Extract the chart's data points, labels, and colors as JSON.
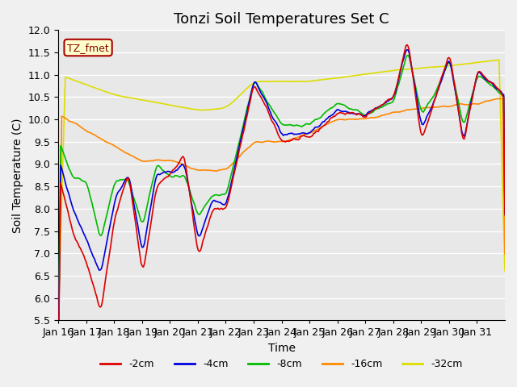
{
  "title": "Tonzi Soil Temperatures Set C",
  "xlabel": "Time",
  "ylabel": "Soil Temperature (C)",
  "ylim": [
    5.5,
    12.0
  ],
  "yticks": [
    5.5,
    6.0,
    6.5,
    7.0,
    7.5,
    8.0,
    8.5,
    9.0,
    9.5,
    10.0,
    10.5,
    11.0,
    11.5,
    12.0
  ],
  "xtick_labels": [
    "Jan 16",
    "Jan 17",
    "Jan 18",
    "Jan 19",
    "Jan 20",
    "Jan 21",
    "Jan 22",
    "Jan 23",
    "Jan 24",
    "Jan 25",
    "Jan 26",
    "Jan 27",
    "Jan 28",
    "Jan 29",
    "Jan 30",
    "Jan 31"
  ],
  "xtick_positions": [
    0,
    1,
    2,
    3,
    4,
    5,
    6,
    7,
    8,
    9,
    10,
    11,
    12,
    13,
    14,
    15
  ],
  "colors": {
    "-2cm": "#dd0000",
    "-4cm": "#0000dd",
    "-8cm": "#00bb00",
    "-16cm": "#ff8800",
    "-32cm": "#dddd00"
  },
  "legend_label": "TZ_fmet",
  "legend_box_color": "#ffffcc",
  "legend_box_edge": "#aa0000",
  "background_color": "#e8e8e8",
  "plot_bg_color": "#e8e8e8",
  "grid_color": "#ffffff",
  "title_fontsize": 13,
  "axis_fontsize": 10,
  "tick_fontsize": 9,
  "line_width": 1.2
}
